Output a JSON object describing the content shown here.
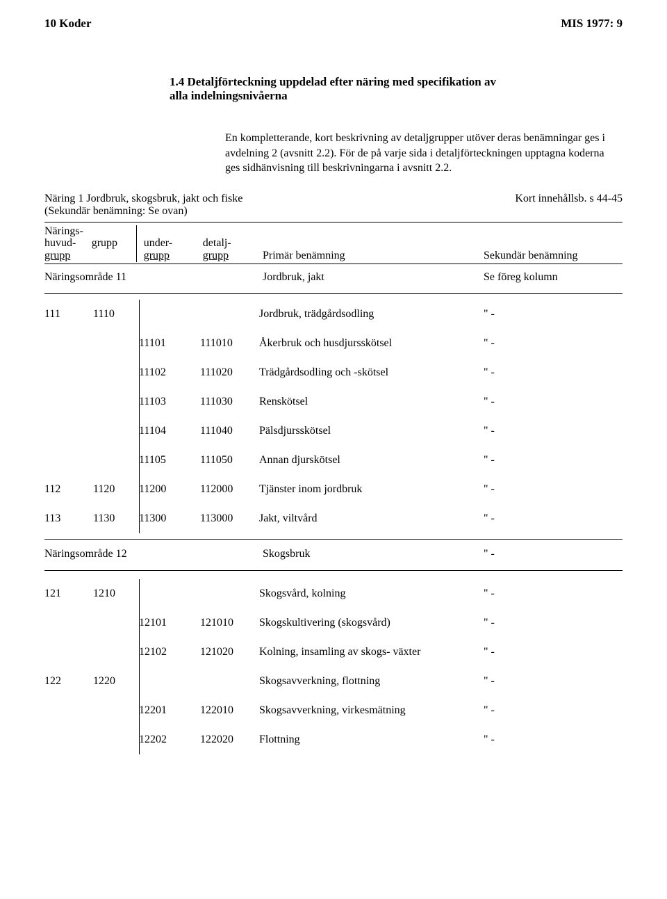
{
  "header": {
    "left": "10 Koder",
    "right": "MIS 1977: 9"
  },
  "section_title": "1.4 Detaljförteckning uppdelad efter näring med specifikation av alla indelningsnivåerna",
  "intro": "En kompletterande, kort beskrivning av detaljgrupper utöver deras benämningar ges i avdelning 2 (avsnitt 2.2). För de på varje sida i detaljförteckningen upptagna koderna ges sidhänvisning till beskrivningarna i avsnitt 2.2.",
  "subhead": {
    "left_line1": "Näring 1 Jordbruk, skogsbruk, jakt och fiske",
    "left_line2": "(Sekundär benämning: Se ovan)",
    "right": "Kort innehållsb. s 44-45"
  },
  "col_headers": {
    "narings": "Närings-",
    "huvud": "huvud-",
    "grupp_word": "grupp",
    "grupp": "grupp",
    "under": "under-",
    "under_grupp": "grupp",
    "detalj": "detalj-",
    "detalj_grupp": "grupp",
    "primar": "Primär benämning",
    "sekundar": "Sekundär benämning"
  },
  "area11": {
    "label": "Näringsområde 11",
    "primary": "Jordbruk, jakt",
    "secondary": "Se föreg kolumn"
  },
  "ditto": "\" -",
  "table11": [
    {
      "huvud": "111",
      "grp": "1110",
      "und": "",
      "det": "",
      "prim": "Jordbruk, trädgårdsodling",
      "sec": "\" -"
    },
    {
      "huvud": "",
      "grp": "",
      "und": "11101",
      "det": "111010",
      "prim": "Åkerbruk och husdjursskötsel",
      "sec": "\" -"
    },
    {
      "huvud": "",
      "grp": "",
      "und": "11102",
      "det": "111020",
      "prim": "Trädgårdsodling och -skötsel",
      "sec": "\" -"
    },
    {
      "huvud": "",
      "grp": "",
      "und": "11103",
      "det": "111030",
      "prim": "Renskötsel",
      "sec": "\" -"
    },
    {
      "huvud": "",
      "grp": "",
      "und": "11104",
      "det": "111040",
      "prim": "Pälsdjursskötsel",
      "sec": "\" -"
    },
    {
      "huvud": "",
      "grp": "",
      "und": "11105",
      "det": "111050",
      "prim": "Annan djurskötsel",
      "sec": "\" -"
    },
    {
      "huvud": "112",
      "grp": "1120",
      "und": "11200",
      "det": "112000",
      "prim": "Tjänster inom jordbruk",
      "sec": "\" -"
    },
    {
      "huvud": "113",
      "grp": "1130",
      "und": "11300",
      "det": "113000",
      "prim": "Jakt, viltvård",
      "sec": "\" -"
    }
  ],
  "area12": {
    "label": "Näringsområde 12",
    "primary": "Skogsbruk",
    "secondary": "\" -"
  },
  "table12": [
    {
      "huvud": "121",
      "grp": "1210",
      "und": "",
      "det": "",
      "prim": "Skogsvård, kolning",
      "sec": "\" -"
    },
    {
      "huvud": "",
      "grp": "",
      "und": "12101",
      "det": "121010",
      "prim": "Skogskultivering (skogsvård)",
      "sec": "\" -"
    },
    {
      "huvud": "",
      "grp": "",
      "und": "12102",
      "det": "121020",
      "prim": "Kolning, insamling av skogs- växter",
      "sec": "\" -"
    },
    {
      "huvud": "122",
      "grp": "1220",
      "und": "",
      "det": "",
      "prim": "Skogsavverkning, flottning",
      "sec": "\" -"
    },
    {
      "huvud": "",
      "grp": "",
      "und": "12201",
      "det": "122010",
      "prim": "Skogsavverkning, virkesmätning",
      "sec": "\" -"
    },
    {
      "huvud": "",
      "grp": "",
      "und": "12202",
      "det": "122020",
      "prim": "Flottning",
      "sec": "\" -"
    }
  ]
}
